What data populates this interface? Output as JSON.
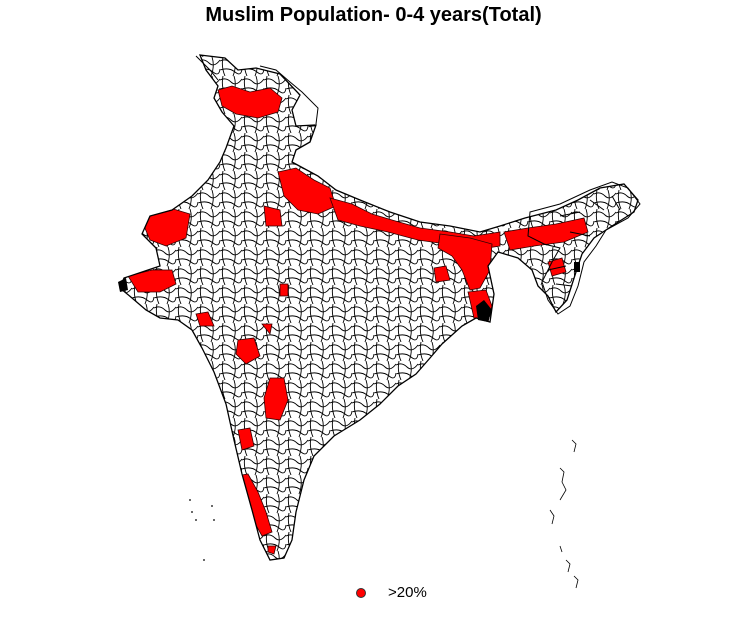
{
  "title": "Muslim Population- 0-4 years(Total)",
  "legend": {
    "items": [
      {
        "label": ">20%",
        "color": "#ff0000"
      }
    ]
  },
  "colors": {
    "highlight": "#ff0000",
    "background": "#ffffff",
    "outline": "#000000"
  },
  "map": {
    "region": "India (district boundaries)",
    "highlighted_category": ">20%"
  }
}
